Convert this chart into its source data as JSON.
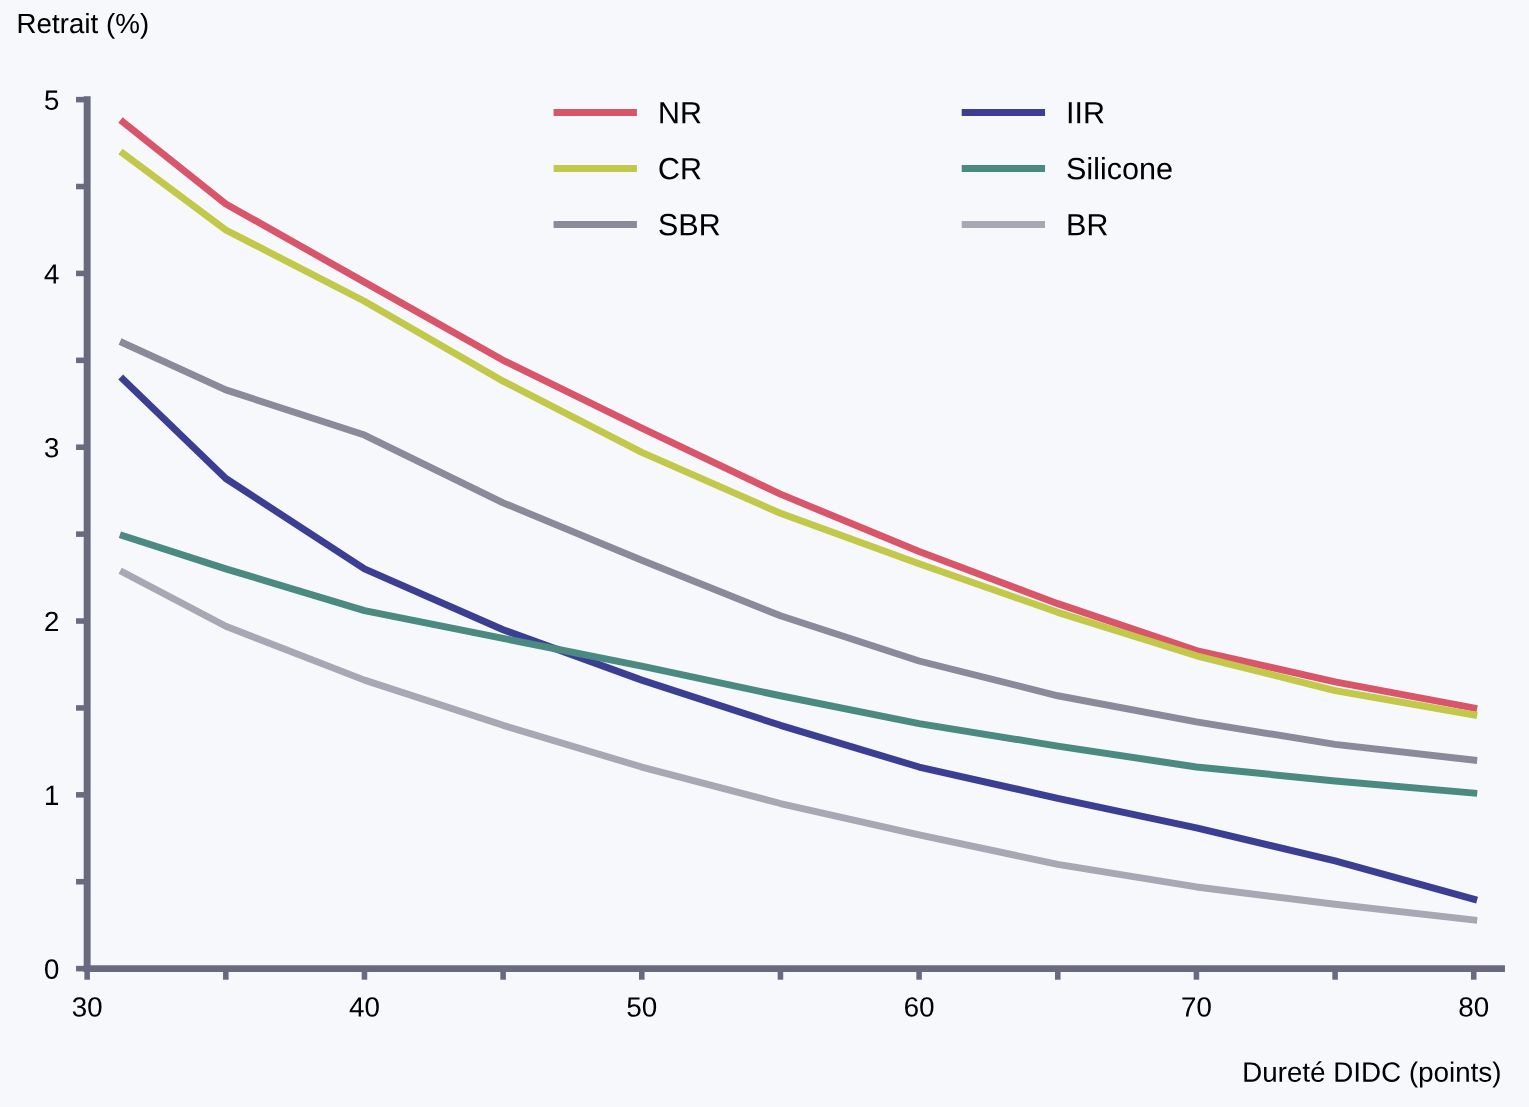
{
  "chart_data": {
    "type": "line",
    "xlabel": "Dureté DIDC (points)",
    "ylabel": "Retrait (%)",
    "xlim": [
      30,
      81
    ],
    "ylim": [
      0,
      5
    ],
    "xticks": [
      30,
      {
        "value": 35,
        "label": null
      },
      40,
      {
        "value": 45,
        "label": null
      },
      50,
      {
        "value": 55,
        "label": null
      },
      60,
      {
        "value": 65,
        "label": null
      },
      70,
      {
        "value": 75,
        "label": null
      },
      80
    ],
    "yticks": [
      0,
      {
        "value": 0.5,
        "label": null
      },
      1,
      {
        "value": 1.5,
        "label": null
      },
      2,
      {
        "value": 2.5,
        "label": null
      },
      3,
      {
        "value": 3.5,
        "label": null
      },
      4,
      {
        "value": 4.5,
        "label": null
      },
      5
    ],
    "grid": false,
    "legend": "top",
    "marker": "none",
    "line_style": "solid",
    "x": [
      31.3,
      35,
      40,
      45,
      50,
      55,
      60,
      65,
      70,
      75,
      80
    ],
    "series": [
      {
        "name": "NR",
        "color": "#d9566a",
        "values": [
          4.87,
          4.4,
          3.95,
          3.5,
          3.11,
          2.73,
          2.4,
          2.1,
          1.83,
          1.65,
          1.5
        ]
      },
      {
        "name": "CR",
        "color": "#c2c84a",
        "values": [
          4.69,
          4.25,
          3.84,
          3.38,
          2.97,
          2.62,
          2.33,
          2.05,
          1.8,
          1.6,
          1.46
        ]
      },
      {
        "name": "SBR",
        "color": "#8a8a9a",
        "values": [
          3.6,
          3.33,
          3.07,
          2.68,
          2.35,
          2.03,
          1.77,
          1.57,
          1.42,
          1.29,
          1.2
        ]
      },
      {
        "name": "IIR",
        "color": "#3a3f94",
        "values": [
          3.39,
          2.82,
          2.3,
          1.95,
          1.66,
          1.4,
          1.16,
          0.98,
          0.81,
          0.62,
          0.4
        ]
      },
      {
        "name": "Silicone",
        "color": "#4a8a80",
        "values": [
          2.49,
          2.3,
          2.06,
          1.9,
          1.74,
          1.57,
          1.41,
          1.28,
          1.16,
          1.08,
          1.01
        ]
      },
      {
        "name": "BR",
        "color": "#a8a8b4",
        "values": [
          2.28,
          1.97,
          1.66,
          1.4,
          1.16,
          0.95,
          0.77,
          0.6,
          0.47,
          0.37,
          0.28
        ]
      }
    ]
  }
}
